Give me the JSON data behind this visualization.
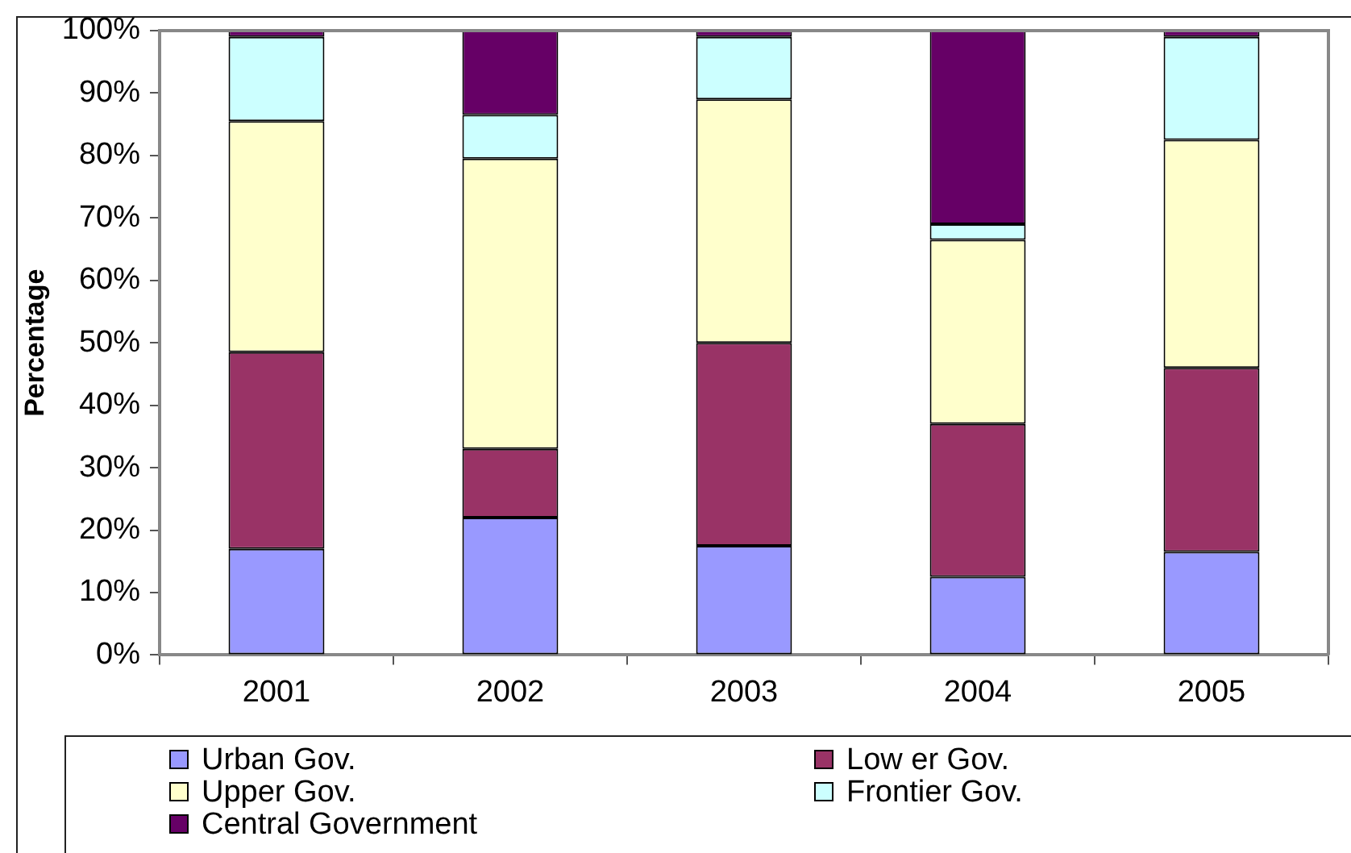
{
  "chart_data": {
    "type": "bar",
    "stacked": true,
    "ylabel": "Percentage",
    "categories": [
      "2001",
      "2002",
      "2003",
      "2004",
      "2005"
    ],
    "series": [
      {
        "name": "Urban Gov.",
        "color": "#9999ff",
        "values": [
          17,
          22,
          17.5,
          12.5,
          16.5
        ]
      },
      {
        "name": "Low er Gov.",
        "color": "#993366",
        "values": [
          31.5,
          11,
          32.5,
          24.5,
          29.5
        ]
      },
      {
        "name": "Upper Gov.",
        "color": "#ffffcc",
        "values": [
          37,
          46.5,
          39,
          29.5,
          36.5
        ]
      },
      {
        "name": "Frontier Gov.",
        "color": "#ccffff",
        "values": [
          13.5,
          7,
          10,
          2.5,
          16.5
        ]
      },
      {
        "name": "Central Government",
        "color": "#660066",
        "values": [
          1,
          13.5,
          1,
          31,
          1
        ]
      }
    ],
    "ylim": [
      0,
      100
    ],
    "yticks": [
      {
        "value": 0,
        "label": "0%"
      },
      {
        "value": 10,
        "label": "10%"
      },
      {
        "value": 20,
        "label": "20%"
      },
      {
        "value": 30,
        "label": "30%"
      },
      {
        "value": 40,
        "label": "40%"
      },
      {
        "value": 50,
        "label": "50%"
      },
      {
        "value": 60,
        "label": "60%"
      },
      {
        "value": 70,
        "label": "70%"
      },
      {
        "value": 80,
        "label": "80%"
      },
      {
        "value": 90,
        "label": "90%"
      },
      {
        "value": 100,
        "label": "100%"
      }
    ],
    "grid": false,
    "legend": "bottom"
  }
}
